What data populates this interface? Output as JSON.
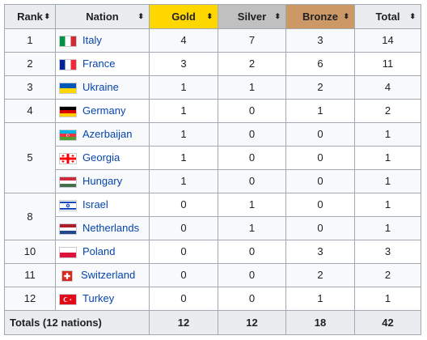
{
  "headers": {
    "rank": "Rank",
    "nation": "Nation",
    "gold": "Gold",
    "silver": "Silver",
    "bronze": "Bronze",
    "total": "Total"
  },
  "sort_icon": "⬍",
  "rows": [
    {
      "rank": "1",
      "nation": "Italy",
      "gold": "4",
      "silver": "7",
      "bronze": "3",
      "total": "14"
    },
    {
      "rank": "2",
      "nation": "France",
      "gold": "3",
      "silver": "2",
      "bronze": "6",
      "total": "11"
    },
    {
      "rank": "3",
      "nation": "Ukraine",
      "gold": "1",
      "silver": "1",
      "bronze": "2",
      "total": "4"
    },
    {
      "rank": "4",
      "nation": "Germany",
      "gold": "1",
      "silver": "0",
      "bronze": "1",
      "total": "2"
    },
    {
      "rank": "5",
      "nation": "Azerbaijan",
      "gold": "1",
      "silver": "0",
      "bronze": "0",
      "total": "1"
    },
    {
      "rank": "",
      "nation": "Georgia",
      "gold": "1",
      "silver": "0",
      "bronze": "0",
      "total": "1"
    },
    {
      "rank": "",
      "nation": "Hungary",
      "gold": "1",
      "silver": "0",
      "bronze": "0",
      "total": "1"
    },
    {
      "rank": "8",
      "nation": "Israel",
      "gold": "0",
      "silver": "1",
      "bronze": "0",
      "total": "1"
    },
    {
      "rank": "",
      "nation": "Netherlands",
      "gold": "0",
      "silver": "1",
      "bronze": "0",
      "total": "1"
    },
    {
      "rank": "10",
      "nation": "Poland",
      "gold": "0",
      "silver": "0",
      "bronze": "3",
      "total": "3"
    },
    {
      "rank": "11",
      "nation": "Switzerland",
      "gold": "0",
      "silver": "0",
      "bronze": "2",
      "total": "2"
    },
    {
      "rank": "12",
      "nation": "Turkey",
      "gold": "0",
      "silver": "0",
      "bronze": "1",
      "total": "1"
    }
  ],
  "totals": {
    "label": "Totals (12 nations)",
    "gold": "12",
    "silver": "12",
    "bronze": "18",
    "total": "42"
  },
  "colors": {
    "gold": "#ffd700",
    "silver": "#c0c0c0",
    "bronze": "#cc9966",
    "link": "#0645ad",
    "border": "#a2a9b1"
  },
  "flags": [
    "italy-flag-icon",
    "france-flag-icon",
    "ukraine-flag-icon",
    "germany-flag-icon",
    "azerbaijan-flag-icon",
    "georgia-flag-icon",
    "hungary-flag-icon",
    "israel-flag-icon",
    "netherlands-flag-icon",
    "poland-flag-icon",
    "switzerland-flag-icon",
    "turkey-flag-icon"
  ]
}
